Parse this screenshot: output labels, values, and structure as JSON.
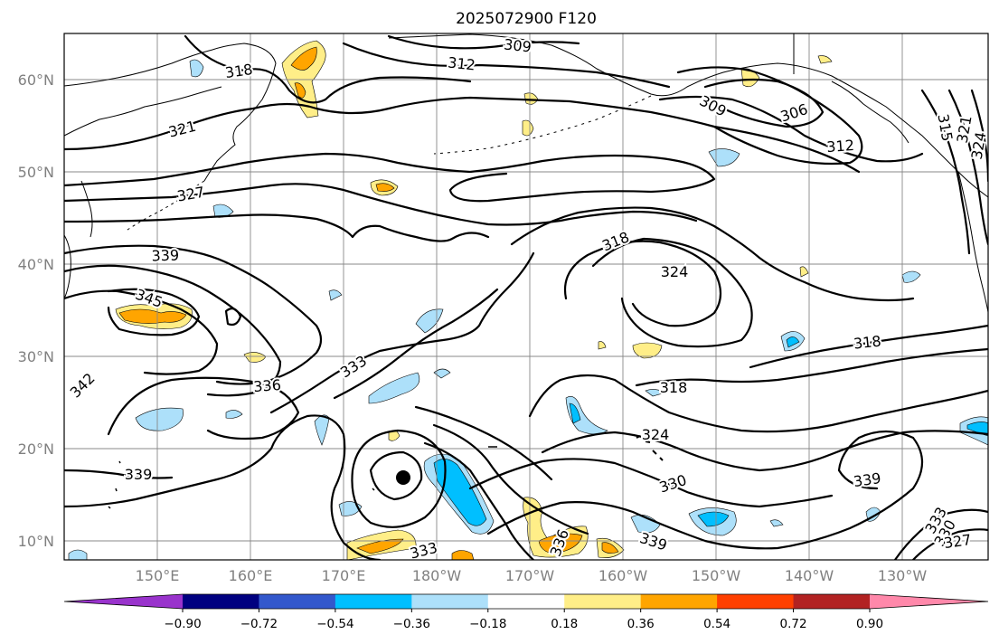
{
  "title": "2025072900 F120",
  "lat_labels": [
    "60°N",
    "50°N",
    "40°N",
    "30°N",
    "20°N",
    "10°N"
  ],
  "lon_labels": [
    "150°E",
    "160°E",
    "170°E",
    "180°W",
    "170°W",
    "160°W",
    "150°W",
    "140°W",
    "130°W"
  ],
  "colorbar": {
    "ticks": [
      "−0.90",
      "−0.72",
      "−0.54",
      "−0.36",
      "−0.18",
      "0.18",
      "0.36",
      "0.54",
      "0.72",
      "0.90"
    ],
    "colors": [
      "#9933cc",
      "#000080",
      "#3358cc",
      "#00bfff",
      "#ade0fa",
      "#ffffff",
      "#ffee88",
      "#ffa500",
      "#ff4000",
      "#b22222",
      "#ff88aa"
    ]
  },
  "contour_labels": [
    {
      "text": "309"
    },
    {
      "text": "312"
    },
    {
      "text": "318"
    },
    {
      "text": "321"
    },
    {
      "text": "327"
    },
    {
      "text": "339"
    },
    {
      "text": "345"
    },
    {
      "text": "342"
    },
    {
      "text": "336"
    },
    {
      "text": "333"
    },
    {
      "text": "339"
    },
    {
      "text": "333"
    },
    {
      "text": "309"
    },
    {
      "text": "306"
    },
    {
      "text": "312"
    },
    {
      "text": "315"
    },
    {
      "text": "321"
    },
    {
      "text": "324"
    },
    {
      "text": "318"
    },
    {
      "text": "324"
    },
    {
      "text": "318"
    },
    {
      "text": "318"
    },
    {
      "text": "324"
    },
    {
      "text": "330"
    },
    {
      "text": "339"
    },
    {
      "text": "336"
    },
    {
      "text": "339"
    },
    {
      "text": "333"
    },
    {
      "text": "330"
    },
    {
      "text": "327"
    }
  ]
}
